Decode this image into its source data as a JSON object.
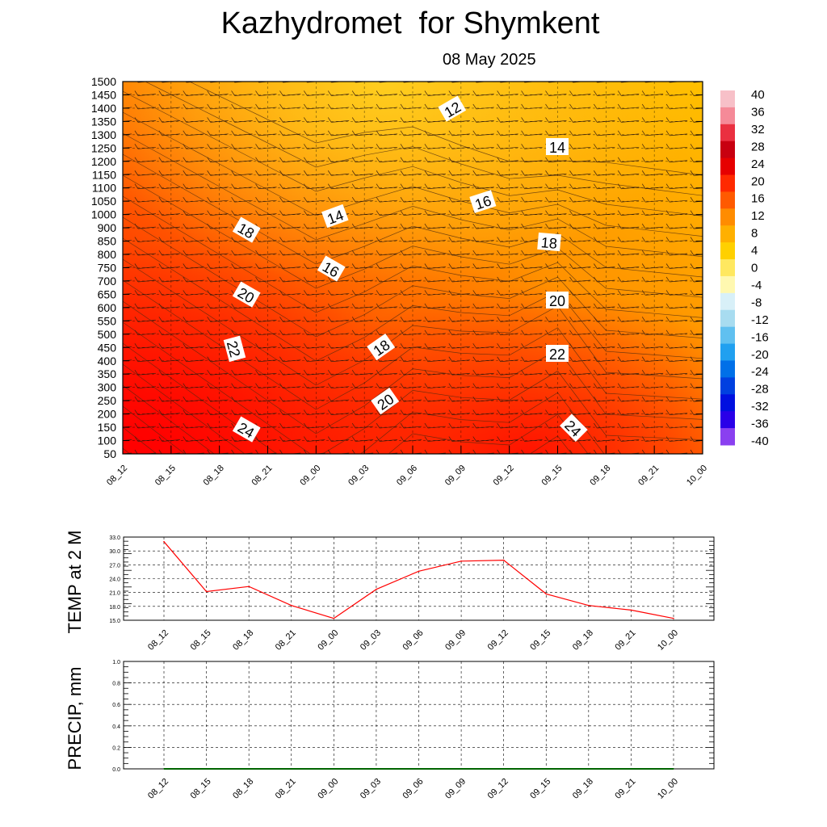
{
  "header": {
    "title": "Kazhydromet  for Shymkent",
    "date": "08 May 2025"
  },
  "chart_data": [
    {
      "type": "heatmap",
      "description_hidden": false,
      "y_ticks": [
        50,
        100,
        150,
        200,
        250,
        300,
        350,
        400,
        450,
        500,
        550,
        600,
        650,
        700,
        750,
        800,
        850,
        900,
        1000,
        1050,
        1100,
        1150,
        1200,
        1250,
        1300,
        1350,
        1400,
        1450,
        1500
      ],
      "x_ticks": [
        "08_12",
        "08_15",
        "08_18",
        "08_21",
        "09_00",
        "09_03",
        "09_06",
        "09_09",
        "09_12",
        "09_15",
        "09_18",
        "09_21",
        "10_00"
      ],
      "colorbar": {
        "labels": [
          "40",
          "36",
          "32",
          "28",
          "24",
          "20",
          "16",
          "12",
          "8",
          "4",
          "0",
          "-4",
          "-8",
          "-12",
          "-16",
          "-20",
          "-24",
          "-28",
          "-32",
          "-36",
          "-40"
        ],
        "colors": [
          "#f7c0c8",
          "#f58a98",
          "#ea3040",
          "#c80010",
          "#e60000",
          "#ff2a00",
          "#ff5a00",
          "#ff8c00",
          "#ffb000",
          "#ffd000",
          "#ffe860",
          "#fff8b0",
          "#d8f0f8",
          "#a8dcf0",
          "#60c0f0",
          "#20a0f0",
          "#0070e8",
          "#0040e0",
          "#0010e0",
          "#2a00e8",
          "#8a40f0"
        ]
      },
      "contour_labels": [
        "12",
        "14",
        "14",
        "16",
        "16",
        "18",
        "18",
        "18",
        "20",
        "20",
        "20",
        "22",
        "22",
        "24",
        "24"
      ],
      "grid": true
    },
    {
      "type": "line",
      "ylabel": "TEMP at 2 M",
      "categories": [
        "08_12",
        "08_15",
        "08_18",
        "08_21",
        "09_00",
        "09_03",
        "09_06",
        "09_09",
        "09_12",
        "09_15",
        "09_18",
        "09_21",
        "10_00"
      ],
      "values": [
        32.0,
        21.2,
        22.3,
        18.2,
        15.4,
        21.7,
        25.6,
        27.8,
        28.0,
        20.7,
        18.2,
        17.2,
        15.4
      ],
      "y_ticks": [
        "33.0",
        "30.0",
        "27.0",
        "24.0",
        "21.0",
        "18.0",
        "15.0"
      ],
      "ylim": [
        15,
        33
      ],
      "color": "#ff0000",
      "grid": true
    },
    {
      "type": "line",
      "ylabel": "PRECIP, mm",
      "categories": [
        "08_12",
        "08_15",
        "08_18",
        "08_21",
        "09_00",
        "09_03",
        "09_06",
        "09_09",
        "09_12",
        "09_15",
        "09_18",
        "09_21",
        "10_00"
      ],
      "values": [
        0,
        0,
        0,
        0,
        0,
        0,
        0,
        0,
        0,
        0,
        0,
        0,
        0
      ],
      "y_ticks": [
        "1.0",
        "0.8",
        "0.6",
        "0.4",
        "0.2",
        "0.0"
      ],
      "ylim": [
        0,
        1
      ],
      "color": "#006400",
      "grid": true
    }
  ]
}
